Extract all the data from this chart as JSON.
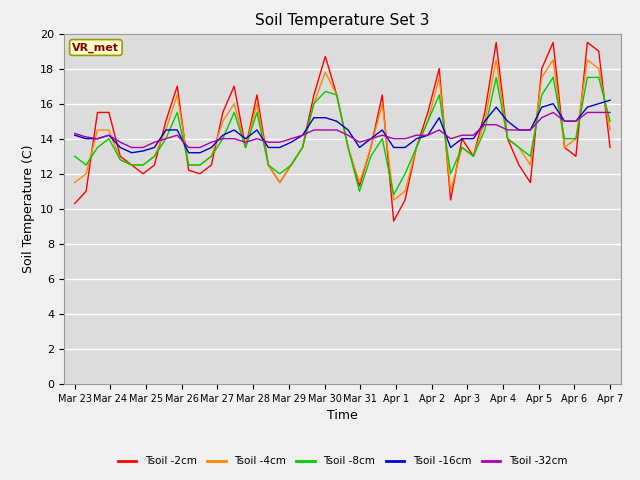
{
  "title": "Soil Temperature Set 3",
  "xlabel": "Time",
  "ylabel": "Soil Temperature (C)",
  "annotation": "VR_met",
  "ylim": [
    0,
    20
  ],
  "yticks": [
    0,
    2,
    4,
    6,
    8,
    10,
    12,
    14,
    16,
    18,
    20
  ],
  "fig_bg": "#f0f0f0",
  "ax_bg": "#dcdcdc",
  "grid_color": "#ffffff",
  "series_colors": [
    "#ff0000",
    "#ff8800",
    "#00cc00",
    "#0000cc",
    "#aa00aa"
  ],
  "series_labels": [
    "Tsoil -2cm",
    "Tsoil -4cm",
    "Tsoil -8cm",
    "Tsoil -16cm",
    "Tsoil -32cm"
  ],
  "dates": [
    "Mar 23",
    "Mar 24",
    "Mar 25",
    "Mar 26",
    "Mar 27",
    "Mar 28",
    "Mar 29",
    "Mar 30",
    "Mar 31",
    "Apr 1",
    "Apr 2",
    "Apr 3",
    "Apr 4",
    "Apr 5",
    "Apr 6",
    "Apr 7"
  ],
  "tsoil_2cm": [
    10.3,
    11.0,
    15.5,
    15.5,
    13.0,
    12.5,
    12.0,
    12.5,
    15.0,
    17.0,
    12.2,
    12.0,
    12.5,
    15.5,
    17.0,
    13.5,
    16.5,
    12.5,
    11.5,
    12.5,
    13.5,
    16.5,
    18.7,
    16.5,
    13.5,
    11.3,
    13.5,
    16.5,
    9.3,
    10.5,
    13.5,
    15.5,
    18.0,
    10.5,
    14.0,
    13.0,
    15.5,
    19.5,
    14.0,
    12.5,
    11.5,
    18.0,
    19.5,
    13.5,
    13.0,
    19.5,
    19.0,
    13.5
  ],
  "tsoil_4cm": [
    11.5,
    12.0,
    14.5,
    14.5,
    12.8,
    12.5,
    12.5,
    13.0,
    14.5,
    16.5,
    12.5,
    12.5,
    13.0,
    15.0,
    16.0,
    13.5,
    16.0,
    12.5,
    11.5,
    12.5,
    13.5,
    16.0,
    17.8,
    16.5,
    13.5,
    11.5,
    13.5,
    16.0,
    10.5,
    11.0,
    13.5,
    15.0,
    17.5,
    11.0,
    13.5,
    13.0,
    15.0,
    18.5,
    14.0,
    13.5,
    12.5,
    17.5,
    18.5,
    13.5,
    14.0,
    18.5,
    18.0,
    14.5
  ],
  "tsoil_8cm": [
    13.0,
    12.5,
    13.5,
    14.0,
    12.8,
    12.5,
    12.5,
    13.0,
    14.0,
    15.5,
    12.5,
    12.5,
    13.0,
    14.0,
    15.5,
    13.5,
    15.5,
    12.5,
    12.0,
    12.5,
    13.5,
    16.0,
    16.7,
    16.5,
    13.5,
    11.0,
    13.0,
    14.0,
    10.8,
    12.0,
    13.5,
    15.0,
    16.5,
    12.0,
    13.5,
    13.0,
    14.5,
    17.5,
    14.0,
    13.5,
    13.0,
    16.5,
    17.5,
    14.0,
    14.0,
    17.5,
    17.5,
    15.0
  ],
  "tsoil_16cm": [
    14.2,
    14.0,
    14.0,
    14.2,
    13.5,
    13.2,
    13.3,
    13.5,
    14.5,
    14.5,
    13.2,
    13.2,
    13.5,
    14.2,
    14.5,
    14.0,
    14.5,
    13.5,
    13.5,
    13.8,
    14.2,
    15.2,
    15.2,
    15.0,
    14.5,
    13.5,
    14.0,
    14.5,
    13.5,
    13.5,
    14.0,
    14.2,
    15.2,
    13.5,
    14.0,
    14.0,
    15.0,
    15.8,
    15.0,
    14.5,
    14.5,
    15.8,
    16.0,
    15.0,
    15.0,
    15.8,
    16.0,
    16.2
  ],
  "tsoil_32cm": [
    14.3,
    14.1,
    14.0,
    14.2,
    13.8,
    13.5,
    13.5,
    13.8,
    14.0,
    14.2,
    13.5,
    13.5,
    13.8,
    14.0,
    14.0,
    13.8,
    14.0,
    13.8,
    13.8,
    14.0,
    14.2,
    14.5,
    14.5,
    14.5,
    14.2,
    13.8,
    14.0,
    14.2,
    14.0,
    14.0,
    14.2,
    14.2,
    14.5,
    14.0,
    14.2,
    14.2,
    14.8,
    14.8,
    14.5,
    14.5,
    14.5,
    15.2,
    15.5,
    15.0,
    15.0,
    15.5,
    15.5,
    15.5
  ]
}
